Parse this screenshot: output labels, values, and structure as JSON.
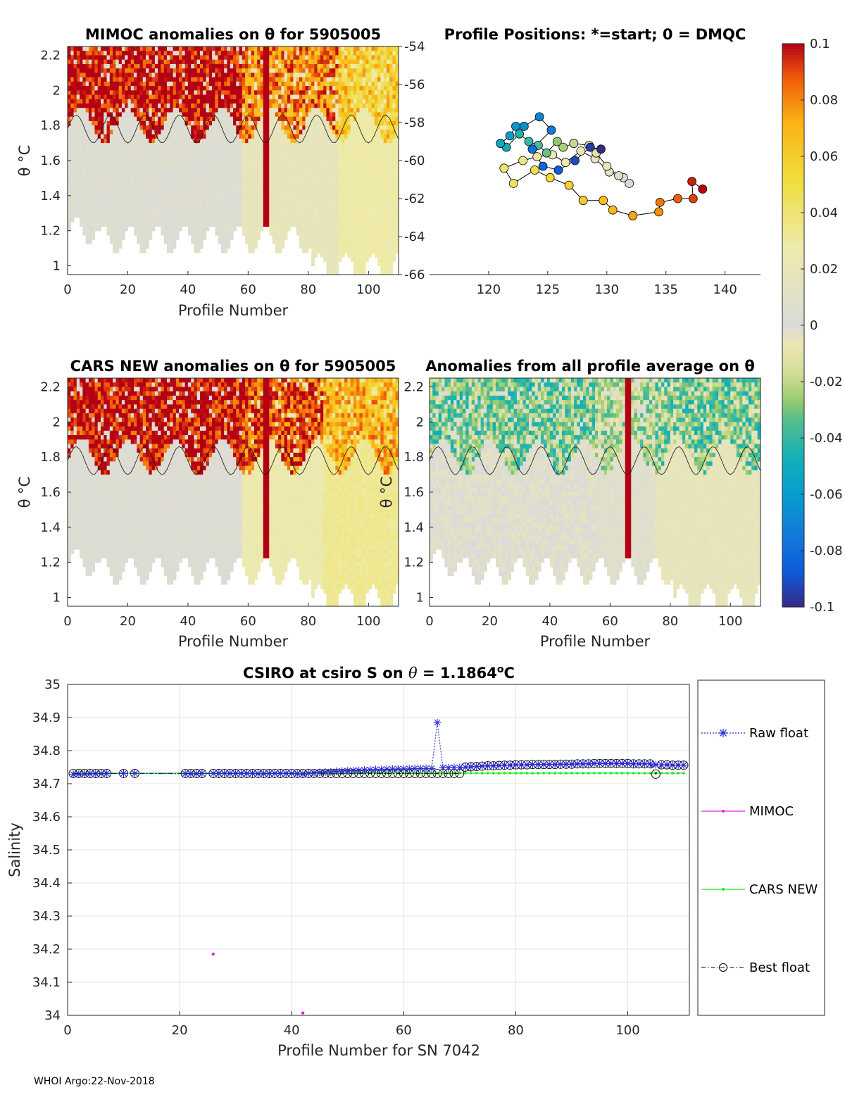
{
  "footer": "WHOI Argo:22-Nov-2018",
  "panels": {
    "mimoc": {
      "title": "MIMOC anomalies on θ  for 5905005",
      "xlabel": "Profile Number",
      "ylabel": "θ °C"
    },
    "positions": {
      "title": "Profile Positions: *=start; 0 = DMQC"
    },
    "cars": {
      "title": "CARS NEW anomalies on θ for 5905005",
      "xlabel": "Profile Number",
      "ylabel": "θ °C"
    },
    "avg": {
      "title": "Anomalies from all profile average on θ",
      "xlabel": "Profile Number",
      "ylabel": "θ °C"
    }
  },
  "colorbar": {
    "ticks": [
      "0.1",
      "0.08",
      "0.06",
      "0.04",
      "0.02",
      "0",
      "-0.02",
      "-0.04",
      "-0.06",
      "-0.08",
      "-0.1"
    ],
    "range": [
      -0.1,
      0.1
    ]
  },
  "chart_data": [
    {
      "type": "heatmap",
      "name": "mimoc",
      "title": "MIMOC anomalies on θ  for 5905005",
      "xlabel": "Profile Number",
      "ylabel": "θ °C",
      "xlim": [
        0,
        110
      ],
      "ylim": [
        0.95,
        2.25
      ],
      "xticks": [
        "0",
        "20",
        "40",
        "60",
        "80",
        "100"
      ],
      "yticks": [
        "1",
        "1.2",
        "1.4",
        "1.6",
        "1.8",
        "2",
        "2.2"
      ],
      "right_yticks": [
        "-54",
        "-56",
        "-58",
        "-60",
        "-62",
        "-64",
        "-66"
      ],
      "anomaly_by_profile_range": [
        {
          "x": [
            0,
            58
          ],
          "below_1.8C": 0.005,
          "above_1.8C": 0.1
        },
        {
          "x": [
            58,
            90
          ],
          "below_1.8C": 0.018,
          "above_1.8C": 0.08
        },
        {
          "x": [
            90,
            110
          ],
          "below_1.8C": 0.028,
          "above_1.8C": 0.06
        }
      ],
      "spike_profile": 66,
      "spike_value": 0.1
    },
    {
      "type": "scatter",
      "name": "positions",
      "title": "Profile Positions: *=start; 0 = DMQC",
      "xlim": [
        115,
        143
      ],
      "ylim": [
        -66,
        -54
      ],
      "xticks": [
        "120",
        "125",
        "130",
        "135",
        "140"
      ],
      "points": [
        [
          138.1,
          -61.5
        ],
        [
          137.2,
          -61.1
        ],
        [
          137.3,
          -62.0
        ],
        [
          136.0,
          -62.0
        ],
        [
          134.5,
          -62.2
        ],
        [
          134.4,
          -62.7
        ],
        [
          132.2,
          -62.9
        ],
        [
          130.5,
          -62.6
        ],
        [
          129.7,
          -62.1
        ],
        [
          128.0,
          -62.1
        ],
        [
          126.8,
          -61.3
        ],
        [
          125.2,
          -60.9
        ],
        [
          123.9,
          -60.5
        ],
        [
          122.1,
          -61.2
        ],
        [
          121.3,
          -60.4
        ],
        [
          122.9,
          -60.0
        ],
        [
          124.1,
          -59.8
        ],
        [
          125.4,
          -59.7
        ],
        [
          126.5,
          -60.1
        ],
        [
          127.8,
          -59.5
        ],
        [
          129.0,
          -59.9
        ],
        [
          130.2,
          -60.6
        ],
        [
          131.4,
          -60.9
        ],
        [
          131.9,
          -61.2
        ],
        [
          131.0,
          -60.8
        ],
        [
          130.0,
          -60.3
        ],
        [
          129.1,
          -59.6
        ],
        [
          128.5,
          -59.2
        ],
        [
          127.2,
          -59.1
        ],
        [
          126.3,
          -59.3
        ],
        [
          125.8,
          -59.0
        ],
        [
          124.9,
          -59.6
        ],
        [
          124.2,
          -59.2
        ],
        [
          123.4,
          -59.0
        ],
        [
          122.6,
          -58.6
        ],
        [
          121.5,
          -59.3
        ],
        [
          121.0,
          -59.1
        ],
        [
          121.8,
          -58.7
        ],
        [
          122.3,
          -58.2
        ],
        [
          123.0,
          -58.2
        ],
        [
          124.3,
          -57.7
        ],
        [
          125.3,
          -58.4
        ],
        [
          123.7,
          -59.4
        ],
        [
          124.6,
          -60.3
        ],
        [
          125.9,
          -60.5
        ],
        [
          127.3,
          -60.0
        ],
        [
          128.6,
          -59.3
        ],
        [
          129.5,
          -59.4
        ]
      ]
    },
    {
      "type": "heatmap",
      "name": "cars",
      "title": "CARS NEW anomalies on θ for 5905005",
      "xlabel": "Profile Number",
      "ylabel": "θ °C",
      "xlim": [
        0,
        110
      ],
      "ylim": [
        0.95,
        2.25
      ],
      "xticks": [
        "0",
        "20",
        "40",
        "60",
        "80",
        "100"
      ],
      "yticks": [
        "1",
        "1.2",
        "1.4",
        "1.6",
        "1.8",
        "2",
        "2.2"
      ],
      "anomaly_by_profile_range": [
        {
          "x": [
            0,
            58
          ],
          "below_1.8C": 0.004,
          "above_1.8C": 0.1
        },
        {
          "x": [
            58,
            85
          ],
          "below_1.8C": 0.025,
          "above_1.8C": 0.09
        },
        {
          "x": [
            85,
            110
          ],
          "below_1.8C": 0.033,
          "above_1.8C": 0.07
        }
      ],
      "spike_profile": 66,
      "spike_value": 0.1
    },
    {
      "type": "heatmap",
      "name": "avg",
      "title": "Anomalies from all profile average on θ",
      "xlabel": "Profile Number",
      "ylabel": "θ °C",
      "xlim": [
        0,
        110
      ],
      "ylim": [
        0.95,
        2.25
      ],
      "xticks": [
        "0",
        "20",
        "40",
        "60",
        "80",
        "100"
      ],
      "yticks": [
        "1",
        "1.2",
        "1.4",
        "1.6",
        "1.8",
        "2",
        "2.2"
      ],
      "anomaly_by_profile_range": [
        {
          "x": [
            0,
            55
          ],
          "below_1.8C": -0.002,
          "above_1.8C": -0.03
        },
        {
          "x": [
            55,
            75
          ],
          "below_1.8C": 0.008,
          "above_1.8C": -0.02
        },
        {
          "x": [
            75,
            110
          ],
          "below_1.8C": 0.018,
          "above_1.8C": -0.03
        }
      ],
      "spike_profile": 66,
      "spike_value": 0.1
    },
    {
      "type": "line",
      "name": "salinity",
      "title": "CSIRO at csiro S on θ = 1.1864°C",
      "xlabel": "Profile Number for SN 7042",
      "ylabel": "Salinity",
      "xlim": [
        0,
        111
      ],
      "ylim": [
        34.0,
        35.0
      ],
      "xticks": [
        "0",
        "20",
        "40",
        "60",
        "80",
        "100"
      ],
      "yticks": [
        "35",
        "34.9",
        "34.8",
        "34.7",
        "34.6",
        "34.5",
        "34.4",
        "34.3",
        "34.2",
        "34.1",
        "34"
      ],
      "grid": true,
      "legend": [
        "Raw float",
        "MIMOC",
        "CARS NEW",
        "Best float"
      ],
      "profiles": [
        1,
        2,
        3,
        4,
        5,
        6,
        7,
        10,
        12,
        21,
        22,
        23,
        24,
        26,
        27,
        28,
        29,
        30,
        31,
        32,
        33,
        34,
        35,
        36,
        37,
        38,
        39,
        40,
        41,
        42,
        43,
        44,
        45,
        46,
        47,
        48,
        49,
        50,
        51,
        52,
        53,
        54,
        55,
        56,
        57,
        58,
        59,
        60,
        61,
        62,
        63,
        64,
        65,
        66,
        67,
        68,
        69,
        70,
        71,
        72,
        73,
        74,
        75,
        76,
        77,
        78,
        79,
        80,
        81,
        82,
        83,
        84,
        85,
        86,
        87,
        88,
        89,
        90,
        91,
        92,
        93,
        94,
        95,
        96,
        97,
        98,
        99,
        100,
        101,
        102,
        103,
        104,
        105,
        106,
        107,
        108,
        109,
        110
      ],
      "raw_float": [
        34.728,
        34.729,
        34.729,
        34.73,
        34.73,
        34.73,
        34.731,
        34.731,
        34.731,
        34.73,
        34.73,
        34.73,
        34.731,
        34.731,
        34.731,
        34.731,
        34.731,
        34.731,
        34.731,
        34.731,
        34.731,
        34.73,
        34.73,
        34.731,
        34.731,
        34.731,
        34.731,
        34.731,
        34.73,
        34.729,
        34.732,
        34.733,
        34.734,
        34.735,
        34.736,
        34.737,
        34.738,
        34.739,
        34.74,
        34.74,
        34.741,
        34.742,
        34.743,
        34.743,
        34.744,
        34.744,
        34.745,
        34.745,
        34.745,
        34.746,
        34.746,
        34.746,
        34.746,
        34.885,
        34.748,
        34.748,
        34.749,
        34.749,
        34.75,
        34.751,
        34.752,
        34.753,
        34.754,
        34.754,
        34.755,
        34.756,
        34.756,
        34.757,
        34.757,
        34.757,
        34.758,
        34.758,
        34.758,
        34.758,
        34.758,
        34.759,
        34.759,
        34.759,
        34.76,
        34.76,
        34.76,
        34.761,
        34.761,
        34.761,
        34.761,
        34.761,
        34.761,
        34.761,
        34.76,
        34.76,
        34.76,
        34.76,
        34.757,
        34.757,
        34.757,
        34.756,
        34.756,
        34.756
      ],
      "cars_new": [
        34.732,
        34.732,
        34.732,
        34.732,
        34.732,
        34.732,
        34.732,
        34.732,
        34.732,
        34.732,
        34.732,
        34.732,
        34.732,
        34.732,
        34.732,
        34.732,
        34.732,
        34.732,
        34.732,
        34.732,
        34.732,
        34.732,
        34.732,
        34.732,
        34.732,
        34.732,
        34.732,
        34.732,
        34.732,
        34.732,
        34.732,
        34.732,
        34.732,
        34.732,
        34.732,
        34.732,
        34.732,
        34.732,
        34.732,
        34.732,
        34.732,
        34.732,
        34.732,
        34.732,
        34.732,
        34.732,
        34.732,
        34.732,
        34.732,
        34.732,
        34.732,
        34.732,
        34.732,
        34.732,
        34.732,
        34.732,
        34.732,
        34.732,
        34.732,
        34.732,
        34.732,
        34.732,
        34.732,
        34.732,
        34.732,
        34.732,
        34.732,
        34.732,
        34.732,
        34.732,
        34.732,
        34.732,
        34.732,
        34.732,
        34.732,
        34.732,
        34.732,
        34.732,
        34.732,
        34.732,
        34.732,
        34.732,
        34.732,
        34.732,
        34.732,
        34.732,
        34.732,
        34.732,
        34.732,
        34.732,
        34.732,
        34.732,
        34.732,
        34.732,
        34.732,
        34.732,
        34.732,
        34.732
      ],
      "best_float": [
        34.731,
        34.731,
        34.731,
        34.731,
        34.731,
        34.731,
        34.731,
        34.731,
        34.731,
        34.731,
        34.731,
        34.731,
        34.731,
        34.731,
        34.731,
        34.731,
        34.731,
        34.731,
        34.731,
        34.731,
        34.731,
        34.731,
        34.731,
        34.731,
        34.731,
        34.731,
        34.731,
        34.731,
        34.731,
        34.731,
        34.731,
        34.731,
        34.731,
        34.731,
        34.731,
        34.731,
        34.731,
        34.731,
        34.731,
        34.731,
        34.731,
        34.731,
        34.731,
        34.731,
        34.731,
        34.731,
        34.731,
        34.731,
        34.731,
        34.731,
        34.731,
        34.731,
        34.731,
        34.731,
        34.731,
        34.731,
        34.731,
        34.731,
        34.75,
        34.751,
        34.752,
        34.753,
        34.754,
        34.754,
        34.755,
        34.756,
        34.756,
        34.757,
        34.757,
        34.757,
        34.758,
        34.758,
        34.758,
        34.758,
        34.758,
        34.759,
        34.759,
        34.759,
        34.76,
        34.76,
        34.76,
        34.761,
        34.761,
        34.761,
        34.761,
        34.761,
        34.761,
        34.761,
        34.76,
        34.76,
        34.76,
        34.76,
        34.729,
        34.757,
        34.757,
        34.756,
        34.756,
        34.756
      ],
      "mimoc_points": [
        {
          "x": 26,
          "y": 34.185
        },
        {
          "x": 42,
          "y": 34.007
        }
      ]
    }
  ]
}
